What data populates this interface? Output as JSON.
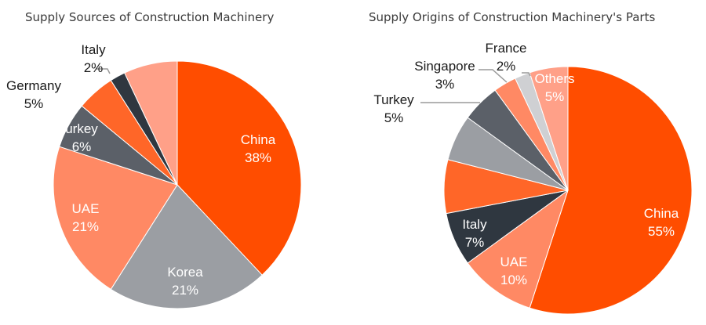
{
  "chart_data": [
    {
      "type": "pie",
      "title": "Supply Sources of Construction Machinery",
      "start_angle": 0,
      "direction": "clockwise",
      "slices": [
        {
          "label": "China",
          "value": 38,
          "value_label": "38%",
          "color": "#FF4D00",
          "label_color": "#ffffff"
        },
        {
          "label": "Korea",
          "value": 21,
          "value_label": "21%",
          "color": "#9B9EA3",
          "label_color": "#ffffff"
        },
        {
          "label": "UAE",
          "value": 21,
          "value_label": "21%",
          "color": "#FF8964",
          "label_color": "#ffffff"
        },
        {
          "label": "urkey",
          "value": 6,
          "value_label": "6%",
          "color": "#5B6068",
          "label_color": "#ffffff"
        },
        {
          "label": "Germany",
          "value": 5,
          "value_label": "5%",
          "color": "#FF6628",
          "label_color": "#1a1a1a"
        },
        {
          "label": "Italy",
          "value": 2,
          "value_label": "2%",
          "color": "#2F3740",
          "label_color": "#1a1a1a"
        },
        {
          "label": "",
          "value": 7,
          "value_label": "",
          "color": "#FFA088",
          "label_color": "#ffffff"
        }
      ]
    },
    {
      "type": "pie",
      "title": "Supply Origins of Construction Machinery's Parts",
      "start_angle": 0,
      "direction": "clockwise",
      "slices": [
        {
          "label": "China",
          "value": 55,
          "value_label": "55%",
          "color": "#FF4D00",
          "label_color": "#ffffff"
        },
        {
          "label": "UAE",
          "value": 10,
          "value_label": "10%",
          "color": "#FF8964",
          "label_color": "#ffffff"
        },
        {
          "label": "Italy",
          "value": 7,
          "value_label": "7%",
          "color": "#2F3740",
          "label_color": "#ffffff"
        },
        {
          "label": "",
          "value": 7,
          "value_label": "",
          "color": "#FF6628",
          "label_color": "#ffffff"
        },
        {
          "label": "",
          "value": 6,
          "value_label": "",
          "color": "#9B9EA3",
          "label_color": "#ffffff"
        },
        {
          "label": "Turkey",
          "value": 5,
          "value_label": "5%",
          "color": "#5B6068",
          "label_color": "#1a1a1a"
        },
        {
          "label": "Singapore",
          "value": 3,
          "value_label": "3%",
          "color": "#FF8964",
          "label_color": "#1a1a1a"
        },
        {
          "label": "France",
          "value": 2,
          "value_label": "2%",
          "color": "#CFD0D3",
          "label_color": "#1a1a1a"
        },
        {
          "label": "Others",
          "value": 5,
          "value_label": "5%",
          "color": "#FFA088",
          "label_color": "#ffffff"
        }
      ]
    }
  ]
}
